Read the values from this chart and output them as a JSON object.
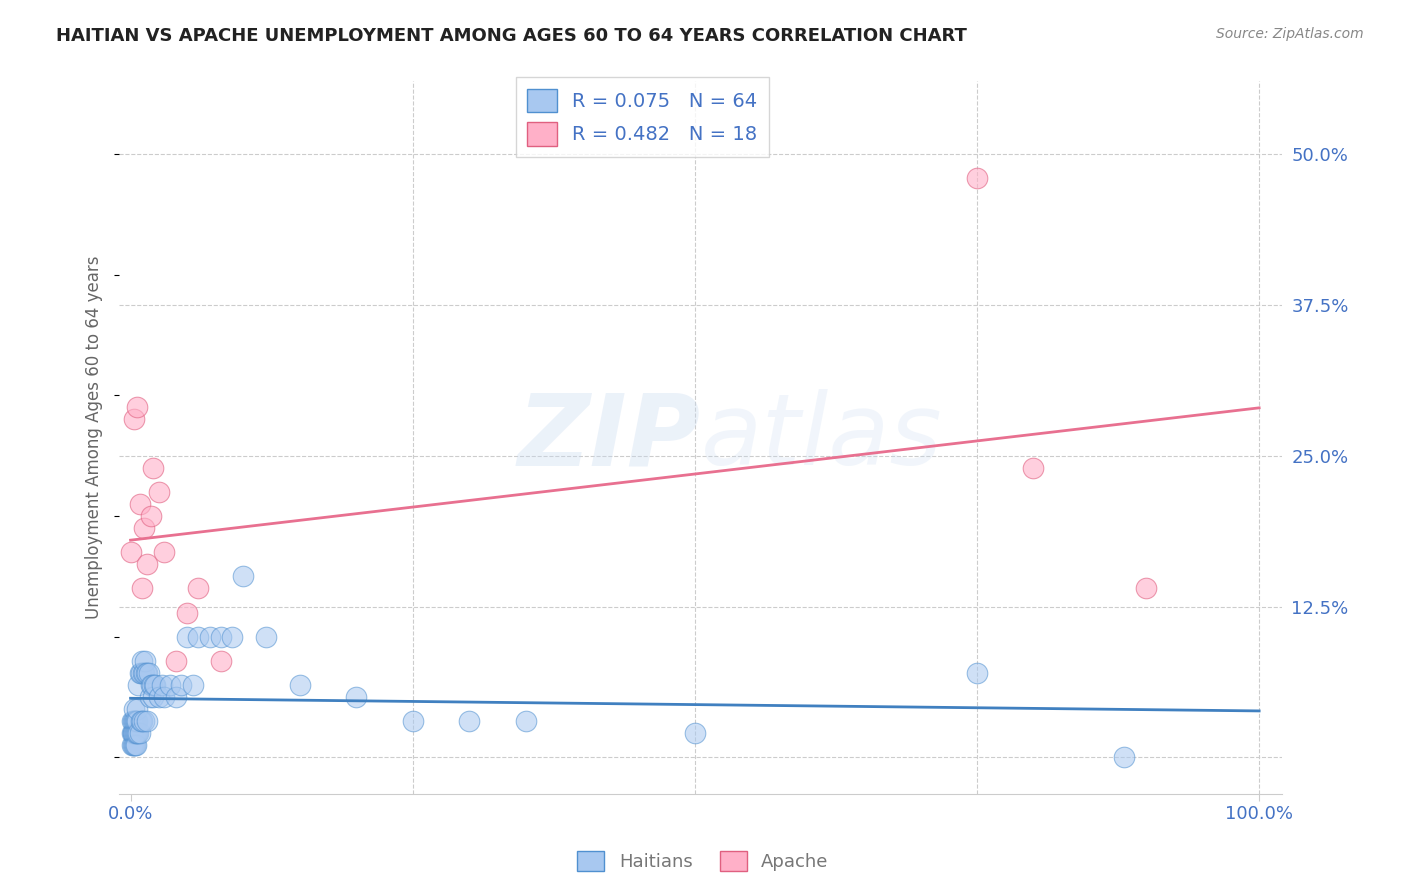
{
  "title": "HAITIAN VS APACHE UNEMPLOYMENT AMONG AGES 60 TO 64 YEARS CORRELATION CHART",
  "source": "Source: ZipAtlas.com",
  "ylabel": "Unemployment Among Ages 60 to 64 years",
  "xlim": [
    -0.01,
    1.02
  ],
  "ylim": [
    -0.03,
    0.56
  ],
  "xticks": [
    0.0,
    1.0
  ],
  "xticklabels": [
    "0.0%",
    "100.0%"
  ],
  "yticks": [
    0.0,
    0.125,
    0.25,
    0.375,
    0.5
  ],
  "yticklabels": [
    "",
    "12.5%",
    "25.0%",
    "37.5%",
    "50.0%"
  ],
  "background_color": "#ffffff",
  "watermark_zip": "ZIP",
  "watermark_atlas": "atlas",
  "blue_fill": "#a8c8f0",
  "blue_edge": "#5090d0",
  "pink_fill": "#ffb0c8",
  "pink_edge": "#e06080",
  "blue_line_color": "#4080c0",
  "pink_line_color": "#e87090",
  "grid_color": "#cccccc",
  "tick_label_color": "#4472c4",
  "ylabel_color": "#666666",
  "legend_blue_label": "R = 0.075   N = 64",
  "legend_pink_label": "R = 0.482   N = 18",
  "legend_haitians": "Haitians",
  "legend_apache": "Apache",
  "haitians_x": [
    0.001,
    0.001,
    0.001,
    0.002,
    0.002,
    0.002,
    0.002,
    0.003,
    0.003,
    0.003,
    0.003,
    0.004,
    0.004,
    0.004,
    0.005,
    0.005,
    0.005,
    0.006,
    0.006,
    0.006,
    0.007,
    0.007,
    0.008,
    0.008,
    0.009,
    0.009,
    0.01,
    0.01,
    0.011,
    0.012,
    0.012,
    0.013,
    0.014,
    0.015,
    0.015,
    0.016,
    0.017,
    0.018,
    0.019,
    0.02,
    0.021,
    0.022,
    0.025,
    0.028,
    0.03,
    0.035,
    0.04,
    0.045,
    0.05,
    0.055,
    0.06,
    0.07,
    0.08,
    0.09,
    0.1,
    0.12,
    0.15,
    0.2,
    0.25,
    0.3,
    0.35,
    0.5,
    0.75,
    0.88
  ],
  "haitians_y": [
    0.01,
    0.02,
    0.03,
    0.01,
    0.02,
    0.02,
    0.03,
    0.01,
    0.02,
    0.03,
    0.04,
    0.01,
    0.02,
    0.03,
    0.01,
    0.02,
    0.03,
    0.02,
    0.03,
    0.04,
    0.02,
    0.06,
    0.02,
    0.07,
    0.03,
    0.07,
    0.03,
    0.08,
    0.07,
    0.03,
    0.07,
    0.08,
    0.07,
    0.03,
    0.07,
    0.07,
    0.05,
    0.06,
    0.06,
    0.05,
    0.06,
    0.06,
    0.05,
    0.06,
    0.05,
    0.06,
    0.05,
    0.06,
    0.1,
    0.06,
    0.1,
    0.1,
    0.1,
    0.1,
    0.15,
    0.1,
    0.06,
    0.05,
    0.03,
    0.03,
    0.03,
    0.02,
    0.07,
    0.0
  ],
  "apache_x": [
    0.0,
    0.003,
    0.006,
    0.008,
    0.01,
    0.012,
    0.015,
    0.018,
    0.02,
    0.025,
    0.03,
    0.04,
    0.05,
    0.06,
    0.08,
    0.75,
    0.8,
    0.9
  ],
  "apache_y": [
    0.17,
    0.28,
    0.29,
    0.21,
    0.14,
    0.19,
    0.16,
    0.2,
    0.24,
    0.22,
    0.17,
    0.08,
    0.12,
    0.14,
    0.08,
    0.48,
    0.24,
    0.14
  ]
}
